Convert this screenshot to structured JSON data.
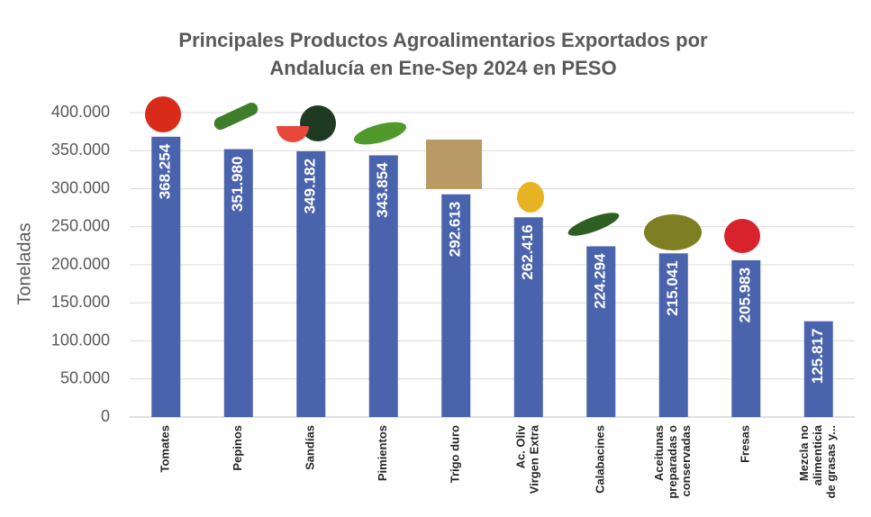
{
  "chart_data": {
    "type": "bar",
    "title": "Principales Productos Agroalimentarios Exportados por Andalucía en Ene-Sep 2024 en PESO",
    "y_label": "Toneladas",
    "categories": [
      "Tomates",
      "Pepinos",
      "Sandías",
      "Pimientos",
      "Trigo duro",
      "Ac. Oliv\nVirgen Extra",
      "Calabacines",
      "Aceitunas\npreparadas o\nconservadas",
      "Fresas",
      "Mezcla no\nalimenticia\nde grasas y..."
    ],
    "values": [
      368254,
      351980,
      349182,
      343854,
      292613,
      262416,
      224294,
      215041,
      205983,
      125817
    ],
    "value_labels": [
      "368.254",
      "351.980",
      "349.182",
      "343.854",
      "292.613",
      "262.416",
      "224.294",
      "215.041",
      "205.983",
      "125.817"
    ],
    "color": "#4a63ad",
    "ylim": [
      0,
      400000
    ],
    "yticks": [
      0,
      {
        "value": 50000,
        "label": "50.000"
      },
      {
        "value": 100000,
        "label": "100.000"
      },
      {
        "value": 150000,
        "label": "150.000"
      },
      {
        "value": 200000,
        "label": "200.000"
      },
      {
        "value": 250000,
        "label": "250.000"
      },
      {
        "value": 300000,
        "label": "300.000"
      },
      {
        "value": 350000,
        "label": "350.000"
      },
      {
        "value": 400000,
        "label": "400.000"
      }
    ],
    "grid": true
  }
}
